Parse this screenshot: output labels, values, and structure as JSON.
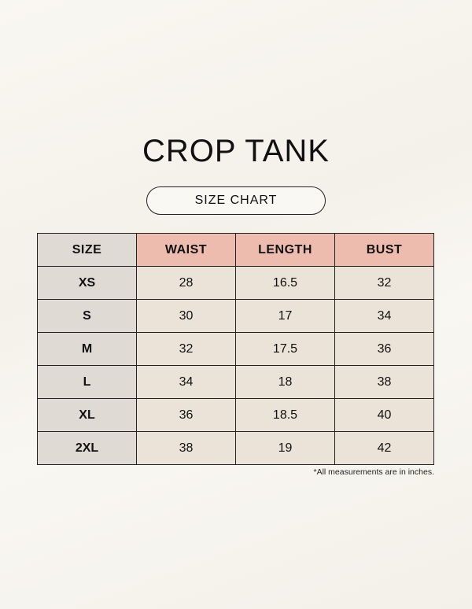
{
  "title": "CROP TANK",
  "subtitle": "SIZE CHART",
  "colors": {
    "header_accent": "#edbcae",
    "size_column": "#e0dad5",
    "cell": "#ebe3d8",
    "background": "#f8f6f0"
  },
  "table": {
    "headers": [
      "SIZE",
      "WAIST",
      "LENGTH",
      "BUST"
    ],
    "rows": [
      [
        "XS",
        "28",
        "16.5",
        "32"
      ],
      [
        "S",
        "30",
        "17",
        "34"
      ],
      [
        "M",
        "32",
        "17.5",
        "36"
      ],
      [
        "L",
        "34",
        "18",
        "38"
      ],
      [
        "XL",
        "36",
        "18.5",
        "40"
      ],
      [
        "2XL",
        "38",
        "19",
        "42"
      ]
    ]
  },
  "note": "*All measurements are in inches."
}
